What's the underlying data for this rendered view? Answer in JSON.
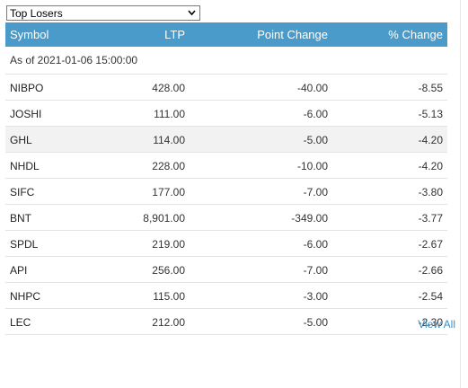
{
  "dropdown": {
    "selected": "Top Losers"
  },
  "table": {
    "headers": {
      "symbol": "Symbol",
      "ltp": "LTP",
      "point_change": "Point Change",
      "pct_change": "% Change"
    },
    "as_of": "As of 2021-01-06 15:00:00",
    "rows": [
      {
        "symbol": "NIBPO",
        "ltp": "428.00",
        "point_change": "-40.00",
        "pct_change": "-8.55"
      },
      {
        "symbol": "JOSHI",
        "ltp": "111.00",
        "point_change": "-6.00",
        "pct_change": "-5.13"
      },
      {
        "symbol": "GHL",
        "ltp": "114.00",
        "point_change": "-5.00",
        "pct_change": "-4.20"
      },
      {
        "symbol": "NHDL",
        "ltp": "228.00",
        "point_change": "-10.00",
        "pct_change": "-4.20"
      },
      {
        "symbol": "SIFC",
        "ltp": "177.00",
        "point_change": "-7.00",
        "pct_change": "-3.80"
      },
      {
        "symbol": "BNT",
        "ltp": "8,901.00",
        "point_change": "-349.00",
        "pct_change": "-3.77"
      },
      {
        "symbol": "SPDL",
        "ltp": "219.00",
        "point_change": "-6.00",
        "pct_change": "-2.67"
      },
      {
        "symbol": "API",
        "ltp": "256.00",
        "point_change": "-7.00",
        "pct_change": "-2.66"
      },
      {
        "symbol": "NHPC",
        "ltp": "115.00",
        "point_change": "-3.00",
        "pct_change": "-2.54"
      },
      {
        "symbol": "LEC",
        "ltp": "212.00",
        "point_change": "-5.00",
        "pct_change": "-2.30"
      }
    ]
  },
  "view_all": "View All",
  "colors": {
    "header_bg": "#4a9bc9",
    "link": "#3a8fc3",
    "alt_row": "#f2f2f2"
  }
}
